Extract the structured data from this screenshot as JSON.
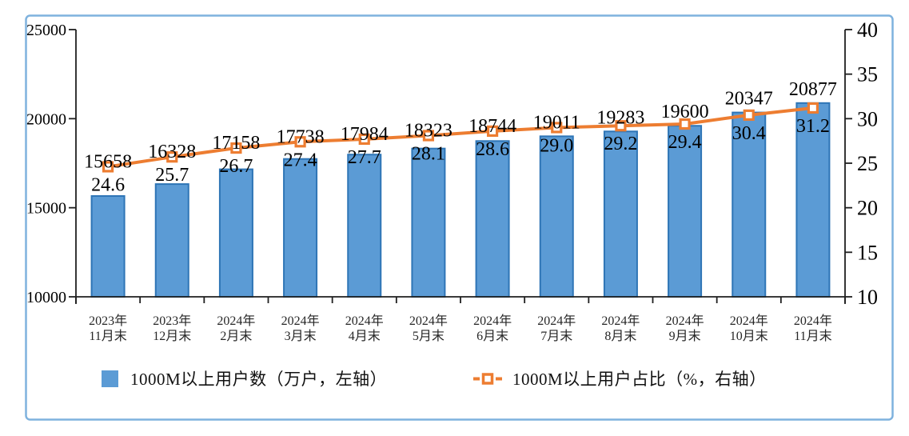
{
  "chart_data": {
    "type": "combo-bar-line",
    "title": "",
    "grid": false,
    "legend_position": "bottom",
    "frame_color": "#7FB2DE",
    "axis_color": "#1f1f1f",
    "label_color": "#000000",
    "categories": [
      {
        "line1": "2023年",
        "line2": "11月末"
      },
      {
        "line1": "2023年",
        "line2": "12月末"
      },
      {
        "line1": "2024年",
        "line2": "2月末"
      },
      {
        "line1": "2024年",
        "line2": "3月末"
      },
      {
        "line1": "2024年",
        "line2": "4月末"
      },
      {
        "line1": "2024年",
        "line2": "5月末"
      },
      {
        "line1": "2024年",
        "line2": "6月末"
      },
      {
        "line1": "2024年",
        "line2": "7月末"
      },
      {
        "line1": "2024年",
        "line2": "8月末"
      },
      {
        "line1": "2024年",
        "line2": "9月末"
      },
      {
        "line1": "2024年",
        "line2": "10月末"
      },
      {
        "line1": "2024年",
        "line2": "11月末"
      }
    ],
    "series": [
      {
        "name": "1000M以上用户数（万户，左轴）",
        "type": "bar",
        "axis": "left",
        "color": "#5B9BD5",
        "border_color": "#2E75B6",
        "values": [
          15658,
          16328,
          17158,
          17738,
          17984,
          18323,
          18744,
          19011,
          19283,
          19600,
          20347,
          20877
        ]
      },
      {
        "name": "1000M以上用户占比（%，右轴）",
        "type": "line",
        "axis": "right",
        "color": "#ED7D31",
        "marker": "square-open",
        "values": [
          24.6,
          25.7,
          26.7,
          27.4,
          27.7,
          28.1,
          28.6,
          29.0,
          29.2,
          29.4,
          30.4,
          31.2
        ]
      }
    ],
    "left_axis": {
      "min": 10000,
      "max": 25000,
      "ticks": [
        10000,
        15000,
        20000,
        25000
      ]
    },
    "right_axis": {
      "min": 10,
      "max": 40,
      "ticks": [
        10,
        15,
        20,
        25,
        30,
        35,
        40
      ]
    }
  }
}
